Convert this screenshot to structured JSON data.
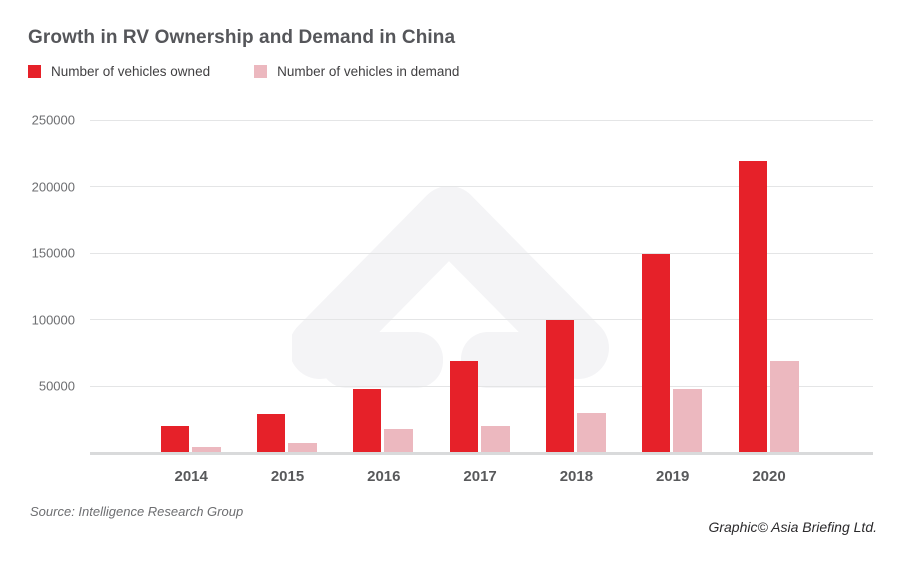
{
  "title": "Growth in RV Ownership and Demand in China",
  "footer": {
    "source": "Source: Intelligence Research Group",
    "credit": "Graphic© Asia Briefing Ltd."
  },
  "colors": {
    "owned_red": "#e62129",
    "demand_pink": "#ecb8bf",
    "gridline": "#e4e5e6",
    "axis_line": "#d9dadb",
    "watermark": "#f4f4f6"
  },
  "chart_data": {
    "type": "bar",
    "title": "Growth in RV Ownership and Demand in China",
    "categories": [
      "2014",
      "2015",
      "2016",
      "2017",
      "2018",
      "2019",
      "2020"
    ],
    "series": [
      {
        "name": "Number of vehicles owned",
        "color": "#e62129",
        "values": [
          20000,
          29000,
          48000,
          69000,
          100000,
          149000,
          219000
        ]
      },
      {
        "name": "Number of vehicles in demand",
        "color": "#ecb8bf",
        "values": [
          4500,
          7500,
          17500,
          20000,
          30000,
          48000,
          69000
        ]
      }
    ],
    "xlabel": "",
    "ylabel": "",
    "ylim": [
      0,
      250000
    ],
    "yticks": [
      50000,
      100000,
      150000,
      200000,
      250000
    ],
    "grid": "horizontal",
    "legend_position": "top-left",
    "source": "Source: Intelligence Research Group",
    "credit": "Graphic© Asia Briefing Ltd."
  }
}
